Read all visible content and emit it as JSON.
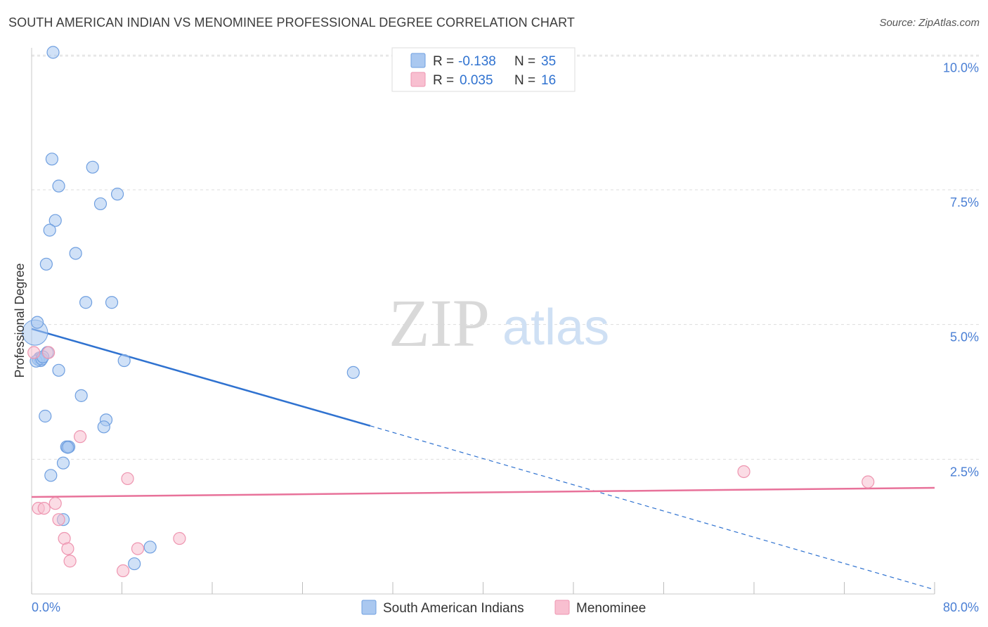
{
  "title": "SOUTH AMERICAN INDIAN VS MENOMINEE PROFESSIONAL DEGREE CORRELATION CHART",
  "source": "Source: ZipAtlas.com",
  "watermark": {
    "part1": "ZIP",
    "part2": "atlas"
  },
  "colors": {
    "blue_fill": "#aac8f0",
    "blue_stroke": "#6f9fe0",
    "blue_line": "#2f72d0",
    "pink_fill": "#f8bfd0",
    "pink_stroke": "#ee95b0",
    "pink_line": "#e8729a",
    "axis_label": "#4a7fd4",
    "grid": "#dddddd"
  },
  "legend_top": [
    {
      "r_label": "R =",
      "r_value": "-0.138",
      "n_label": "N =",
      "n_value": "35",
      "color": "blue"
    },
    {
      "r_label": "R =",
      "r_value": "0.035",
      "n_label": "N =",
      "n_value": "16",
      "color": "pink"
    }
  ],
  "chart_data": {
    "type": "scatter",
    "title": "SOUTH AMERICAN INDIAN VS MENOMINEE PROFESSIONAL DEGREE CORRELATION CHART",
    "xlabel": "",
    "ylabel": "Professional Degree",
    "xlim": [
      0,
      80
    ],
    "ylim": [
      0,
      10.2
    ],
    "x_tick_labels": [
      "0.0%",
      "80.0%"
    ],
    "y_ticks": [
      2.5,
      5.0,
      7.5,
      10.0
    ],
    "y_tick_labels": [
      "2.5%",
      "5.0%",
      "7.5%",
      "10.0%"
    ],
    "grid": true,
    "series": [
      {
        "name": "South American Indians",
        "color": "blue",
        "points": [
          [
            1.9,
            10.05
          ],
          [
            1.8,
            8.07
          ],
          [
            2.4,
            7.57
          ],
          [
            5.4,
            7.92
          ],
          [
            7.6,
            7.42
          ],
          [
            6.1,
            7.24
          ],
          [
            2.1,
            6.93
          ],
          [
            1.6,
            6.75
          ],
          [
            3.9,
            6.32
          ],
          [
            1.3,
            6.12
          ],
          [
            4.8,
            5.41
          ],
          [
            7.1,
            5.41
          ],
          [
            0.5,
            5.04
          ],
          [
            0.7,
            4.38
          ],
          [
            0.8,
            4.33
          ],
          [
            1.4,
            4.48
          ],
          [
            8.2,
            4.33
          ],
          [
            2.4,
            4.15
          ],
          [
            28.5,
            4.11
          ],
          [
            4.4,
            3.68
          ],
          [
            1.2,
            3.3
          ],
          [
            6.6,
            3.23
          ],
          [
            6.4,
            3.1
          ],
          [
            3.1,
            2.73
          ],
          [
            3.3,
            2.73
          ],
          [
            2.8,
            2.43
          ],
          [
            1.7,
            2.2
          ],
          [
            2.8,
            1.38
          ],
          [
            10.5,
            0.87
          ],
          [
            9.1,
            0.56
          ],
          [
            0.6,
            4.35
          ],
          [
            3.2,
            2.72
          ],
          [
            0.4,
            4.32
          ],
          [
            0.9,
            4.36
          ],
          [
            1.0,
            4.4
          ]
        ],
        "trend": {
          "x": [
            0,
            30
          ],
          "y": [
            4.92,
            3.12
          ],
          "dashed_extension": {
            "x": [
              30,
              80
            ],
            "y": [
              3.12,
              0.08
            ]
          }
        }
      },
      {
        "name": "Menominee",
        "color": "pink",
        "points": [
          [
            0.2,
            4.48
          ],
          [
            1.5,
            4.48
          ],
          [
            4.3,
            2.92
          ],
          [
            8.5,
            2.14
          ],
          [
            2.1,
            1.68
          ],
          [
            0.6,
            1.59
          ],
          [
            1.1,
            1.59
          ],
          [
            2.4,
            1.38
          ],
          [
            2.9,
            1.03
          ],
          [
            3.2,
            0.84
          ],
          [
            9.4,
            0.84
          ],
          [
            13.1,
            1.03
          ],
          [
            3.4,
            0.61
          ],
          [
            8.1,
            0.43
          ],
          [
            63.1,
            2.27
          ],
          [
            74.1,
            2.08
          ]
        ],
        "trend": {
          "x": [
            0,
            80
          ],
          "y": [
            1.8,
            1.97
          ]
        }
      }
    ]
  }
}
